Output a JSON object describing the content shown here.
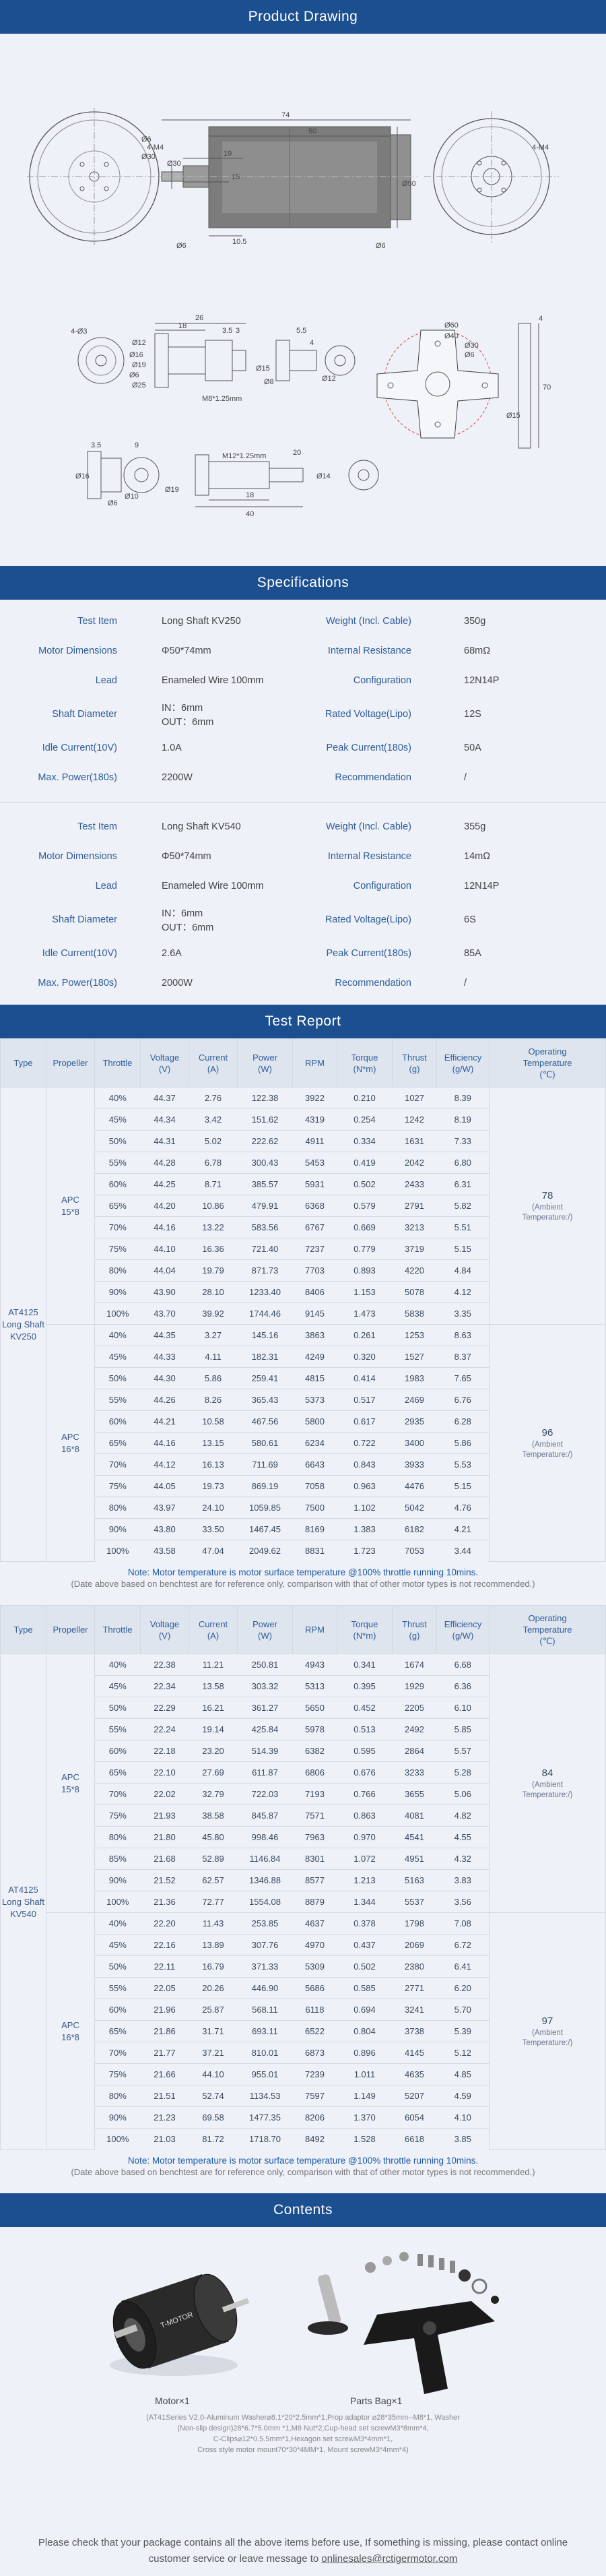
{
  "drawing": {
    "title": "Product Drawing",
    "dims": {
      "d74": "74",
      "d50": "50",
      "d19": "19",
      "d15": "15",
      "d10_5": "10.5",
      "d6a": "Ø6",
      "d30a": "Ø30",
      "d50b": "Ø50",
      "d6b": "Ø6",
      "d6c": "Ø6",
      "d30b": "Ø30",
      "m4a": "4-M4",
      "m4b": "4-M4",
      "d26": "26",
      "d18": "18",
      "d5_5": "5.5",
      "d3_5a": "3.5",
      "d3": "3",
      "d4a": "4",
      "d15b": "Ø15",
      "d16": "Ø16",
      "d12": "Ø12",
      "d8a": "Ø8",
      "d6d": "Ø6",
      "m8": "M8*1.25mm",
      "d4m3": "4-Ø3",
      "d12b": "Ø12",
      "d19b": "Ø19",
      "d25": "Ø25",
      "d3_5b": "3.5",
      "d9": "9",
      "d20": "20",
      "d18b": "18",
      "d40": "40",
      "d16b": "Ø16",
      "d10": "Ø10",
      "d6e": "Ø6",
      "d19c": "Ø19",
      "m12": "M12*1.25mm",
      "d14": "Ø14",
      "d60": "Ø60",
      "d40b": "Ø40",
      "d30c": "Ø30",
      "d6f": "Ø6",
      "d4b": "4",
      "d15c": "Ø15",
      "d70": "70"
    }
  },
  "specs": {
    "title": "Specifications",
    "groups": [
      {
        "rows": [
          {
            "k1": "Test Item",
            "v1": "Long Shaft KV250",
            "k2": "Weight (Incl. Cable)",
            "v2": "350g"
          },
          {
            "k1": "Motor Dimensions",
            "v1": "Φ50*74mm",
            "k2": "Internal Resistance",
            "v2": "68mΩ"
          },
          {
            "k1": "Lead",
            "v1": "Enameled Wire 100mm",
            "k2": "Configuration",
            "v2": "12N14P"
          },
          {
            "k1": "Shaft Diameter",
            "v1": "IN：6mm",
            "v1b": "OUT：6mm",
            "k2": "Rated Voltage(Lipo)",
            "v2": "12S"
          },
          {
            "k1": "Idle Current(10V)",
            "v1": "1.0A",
            "k2": "Peak Current(180s)",
            "v2": "50A"
          },
          {
            "k1": "Max. Power(180s)",
            "v1": "2200W",
            "k2": "Recommendation",
            "v2": "/"
          }
        ]
      },
      {
        "rows": [
          {
            "k1": "Test Item",
            "v1": "Long Shaft KV540",
            "k2": "Weight (Incl. Cable)",
            "v2": "355g"
          },
          {
            "k1": "Motor Dimensions",
            "v1": "Φ50*74mm",
            "k2": "Internal Resistance",
            "v2": "14mΩ"
          },
          {
            "k1": "Lead",
            "v1": "Enameled Wire 100mm",
            "k2": "Configuration",
            "v2": "12N14P"
          },
          {
            "k1": "Shaft Diameter",
            "v1": "IN：6mm",
            "v1b": "OUT：6mm",
            "k2": "Rated Voltage(Lipo)",
            "v2": "6S"
          },
          {
            "k1": "Idle Current(10V)",
            "v1": "2.6A",
            "k2": "Peak Current(180s)",
            "v2": "85A"
          },
          {
            "k1": "Max. Power(180s)",
            "v1": "2000W",
            "k2": "Recommendation",
            "v2": "/"
          }
        ]
      }
    ]
  },
  "report": {
    "title": "Test Report",
    "headers": [
      "Type",
      "Propeller",
      "Throttle",
      "Voltage\n(V)",
      "Current\n(A)",
      "Power\n(W)",
      "RPM",
      "Torque\n(N*m)",
      "Thrust\n(g)",
      "Efficiency\n(g/W)",
      "Operating\nTemperature\n(℃)"
    ],
    "note1": "Note: Motor temperature is motor surface temperature @100% throttle running 10mins.",
    "note2": "(Date above based on benchtest are for reference only, comparison with that of other motor types is not recommended.)",
    "tables": [
      {
        "type": "AT4125\nLong Shaft\nKV250",
        "groups": [
          {
            "prop": "APC\n15*8",
            "temp": "78",
            "temp_sub": "(Ambient\nTemperature:/)",
            "rows": [
              [
                "40%",
                "44.37",
                "2.76",
                "122.38",
                "3922",
                "0.210",
                "1027",
                "8.39"
              ],
              [
                "45%",
                "44.34",
                "3.42",
                "151.62",
                "4319",
                "0.254",
                "1242",
                "8.19"
              ],
              [
                "50%",
                "44.31",
                "5.02",
                "222.62",
                "4911",
                "0.334",
                "1631",
                "7.33"
              ],
              [
                "55%",
                "44.28",
                "6.78",
                "300.43",
                "5453",
                "0.419",
                "2042",
                "6.80"
              ],
              [
                "60%",
                "44.25",
                "8.71",
                "385.57",
                "5931",
                "0.502",
                "2433",
                "6.31"
              ],
              [
                "65%",
                "44.20",
                "10.86",
                "479.91",
                "6368",
                "0.579",
                "2791",
                "5.82"
              ],
              [
                "70%",
                "44.16",
                "13.22",
                "583.56",
                "6767",
                "0.669",
                "3213",
                "5.51"
              ],
              [
                "75%",
                "44.10",
                "16.36",
                "721.40",
                "7237",
                "0.779",
                "3719",
                "5.15"
              ],
              [
                "80%",
                "44.04",
                "19.79",
                "871.73",
                "7703",
                "0.893",
                "4220",
                "4.84"
              ],
              [
                "90%",
                "43.90",
                "28.10",
                "1233.40",
                "8406",
                "1.153",
                "5078",
                "4.12"
              ],
              [
                "100%",
                "43.70",
                "39.92",
                "1744.46",
                "9145",
                "1.473",
                "5838",
                "3.35"
              ]
            ]
          },
          {
            "prop": "APC\n16*8",
            "temp": "96",
            "temp_sub": "(Ambient\nTemperature:/)",
            "rows": [
              [
                "40%",
                "44.35",
                "3.27",
                "145.16",
                "3863",
                "0.261",
                "1253",
                "8.63"
              ],
              [
                "45%",
                "44.33",
                "4.11",
                "182.31",
                "4249",
                "0.320",
                "1527",
                "8.37"
              ],
              [
                "50%",
                "44.30",
                "5.86",
                "259.41",
                "4815",
                "0.414",
                "1983",
                "7.65"
              ],
              [
                "55%",
                "44.26",
                "8.26",
                "365.43",
                "5373",
                "0.517",
                "2469",
                "6.76"
              ],
              [
                "60%",
                "44.21",
                "10.58",
                "467.56",
                "5800",
                "0.617",
                "2935",
                "6.28"
              ],
              [
                "65%",
                "44.16",
                "13.15",
                "580.61",
                "6234",
                "0.722",
                "3400",
                "5.86"
              ],
              [
                "70%",
                "44.12",
                "16.13",
                "711.69",
                "6643",
                "0.843",
                "3933",
                "5.53"
              ],
              [
                "75%",
                "44.05",
                "19.73",
                "869.19",
                "7058",
                "0.963",
                "4476",
                "5.15"
              ],
              [
                "80%",
                "43.97",
                "24.10",
                "1059.85",
                "7500",
                "1.102",
                "5042",
                "4.76"
              ],
              [
                "90%",
                "43.80",
                "33.50",
                "1467.45",
                "8169",
                "1.383",
                "6182",
                "4.21"
              ],
              [
                "100%",
                "43.58",
                "47.04",
                "2049.62",
                "8831",
                "1.723",
                "7053",
                "3.44"
              ]
            ]
          }
        ]
      },
      {
        "type": "AT4125\nLong Shaft\nKV540",
        "groups": [
          {
            "prop": "APC\n15*8",
            "temp": "84",
            "temp_sub": "(Ambient\nTemperature:/)",
            "rows": [
              [
                "40%",
                "22.38",
                "11.21",
                "250.81",
                "4943",
                "0.341",
                "1674",
                "6.68"
              ],
              [
                "45%",
                "22.34",
                "13.58",
                "303.32",
                "5313",
                "0.395",
                "1929",
                "6.36"
              ],
              [
                "50%",
                "22.29",
                "16.21",
                "361.27",
                "5650",
                "0.452",
                "2205",
                "6.10"
              ],
              [
                "55%",
                "22.24",
                "19.14",
                "425.84",
                "5978",
                "0.513",
                "2492",
                "5.85"
              ],
              [
                "60%",
                "22.18",
                "23.20",
                "514.39",
                "6382",
                "0.595",
                "2864",
                "5.57"
              ],
              [
                "65%",
                "22.10",
                "27.69",
                "611.87",
                "6806",
                "0.676",
                "3233",
                "5.28"
              ],
              [
                "70%",
                "22.02",
                "32.79",
                "722.03",
                "7193",
                "0.766",
                "3655",
                "5.06"
              ],
              [
                "75%",
                "21.93",
                "38.58",
                "845.87",
                "7571",
                "0.863",
                "4081",
                "4.82"
              ],
              [
                "80%",
                "21.80",
                "45.80",
                "998.46",
                "7963",
                "0.970",
                "4541",
                "4.55"
              ],
              [
                "85%",
                "21.68",
                "52.89",
                "1146.84",
                "8301",
                "1.072",
                "4951",
                "4.32"
              ],
              [
                "90%",
                "21.52",
                "62.57",
                "1346.88",
                "8577",
                "1.213",
                "5163",
                "3.83"
              ],
              [
                "100%",
                "21.36",
                "72.77",
                "1554.08",
                "8879",
                "1.344",
                "5537",
                "3.56"
              ]
            ]
          },
          {
            "prop": "APC\n16*8",
            "temp": "97",
            "temp_sub": "(Ambient\nTemperature:/)",
            "rows": [
              [
                "40%",
                "22.20",
                "11.43",
                "253.85",
                "4637",
                "0.378",
                "1798",
                "7.08"
              ],
              [
                "45%",
                "22.16",
                "13.89",
                "307.76",
                "4970",
                "0.437",
                "2069",
                "6.72"
              ],
              [
                "50%",
                "22.11",
                "16.79",
                "371.33",
                "5309",
                "0.502",
                "2380",
                "6.41"
              ],
              [
                "55%",
                "22.05",
                "20.26",
                "446.90",
                "5686",
                "0.585",
                "2771",
                "6.20"
              ],
              [
                "60%",
                "21.96",
                "25.87",
                "568.11",
                "6118",
                "0.694",
                "3241",
                "5.70"
              ],
              [
                "65%",
                "21.86",
                "31.71",
                "693.11",
                "6522",
                "0.804",
                "3738",
                "5.39"
              ],
              [
                "70%",
                "21.77",
                "37.21",
                "810.01",
                "6873",
                "0.896",
                "4145",
                "5.12"
              ],
              [
                "75%",
                "21.66",
                "44.10",
                "955.01",
                "7239",
                "1.011",
                "4635",
                "4.85"
              ],
              [
                "80%",
                "21.51",
                "52.74",
                "1134.53",
                "7597",
                "1.149",
                "5207",
                "4.59"
              ],
              [
                "90%",
                "21.23",
                "69.58",
                "1477.35",
                "8206",
                "1.370",
                "6054",
                "4.10"
              ],
              [
                "100%",
                "21.03",
                "81.72",
                "1718.70",
                "8492",
                "1.528",
                "6618",
                "3.85"
              ]
            ]
          }
        ]
      }
    ]
  },
  "contents": {
    "title": "Contents",
    "motor_label": "Motor×1",
    "parts_label": "Parts Bag×1",
    "brand_text": "T-MOTOR",
    "parts_desc": [
      "(AT41Series V2.0-Aluminum Washer⌀8.1*20*2.5mm*1,Prop adaptor ⌀28*35mm--M8*1, Washer",
      "(Non-slip design)28*6.7*5.0mm *1,M8 Nut*2,Cup-head set screwM3*8mm*4,",
      "C-Clips⌀12*0.5.5mm*1,Hexagon set screwM3*4mm*1,",
      "Cross style motor mount70*30*4MM*1, Mount screwM3*4mm*4)"
    ]
  },
  "footer": {
    "line1": "Please check that your package contains all the above items before use, If something is missing, please contact online",
    "line2_prefix": "customer service or leave message to ",
    "email": "onlinesales@rctigermotor.com"
  }
}
